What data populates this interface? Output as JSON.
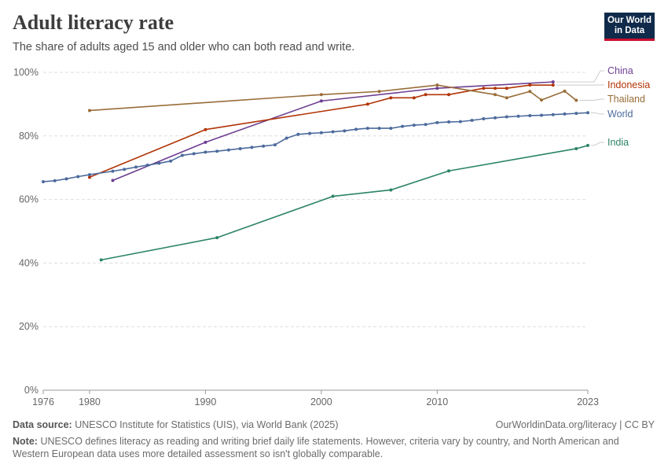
{
  "header": {
    "title": "Adult literacy rate",
    "subtitle": "The share of adults aged 15 and older who can both read and write."
  },
  "logo": {
    "line1": "Our World",
    "line2": "in Data"
  },
  "footer": {
    "source_label": "Data source:",
    "source_text": "UNESCO Institute for Statistics (UIS), via World Bank (2025)",
    "license": "OurWorldinData.org/literacy | CC BY",
    "note_label": "Note:",
    "note_text": "UNESCO defines literacy as reading and writing brief daily life statements. However, criteria vary by country, and North American and Western European data uses more detailed assessment so isn't globally comparable."
  },
  "chart_data": {
    "type": "line",
    "title": "Adult literacy rate",
    "subtitle": "The share of adults aged 15 and older who can both read and write.",
    "xlabel": "",
    "ylabel": "",
    "xlim": [
      1976,
      2023
    ],
    "ylim": [
      0,
      100
    ],
    "x_ticks": [
      1976,
      1980,
      1990,
      2000,
      2010,
      2023
    ],
    "y_ticks": [
      0,
      20,
      40,
      60,
      80,
      100
    ],
    "y_tick_labels": [
      "0%",
      "20%",
      "40%",
      "60%",
      "80%",
      "100%"
    ],
    "grid": "horizontal dashed",
    "legend": "right, inline labels",
    "series": [
      {
        "name": "China",
        "color": "#6d3e91",
        "x": [
          1982,
          1990,
          2000,
          2010,
          2020
        ],
        "y": [
          66,
          78,
          91,
          95,
          97
        ]
      },
      {
        "name": "Indonesia",
        "color": "#b13507",
        "x": [
          1980,
          1990,
          2004,
          2006,
          2008,
          2009,
          2011,
          2014,
          2015,
          2016,
          2018,
          2020
        ],
        "y": [
          67,
          82,
          90,
          92,
          92,
          93,
          93,
          95,
          95,
          95,
          96,
          96
        ]
      },
      {
        "name": "Thailand",
        "color": "#996d39",
        "x": [
          1980,
          2000,
          2005,
          2010,
          2015,
          2016,
          2018,
          2019,
          2021,
          2022
        ],
        "y": [
          88,
          93,
          94,
          96,
          93,
          92,
          94,
          91.3,
          94.1,
          91.2
        ]
      },
      {
        "name": "World",
        "color": "#4c6a9c",
        "x": [
          1976,
          1977,
          1978,
          1979,
          1980,
          1982,
          1983,
          1984,
          1985,
          1986,
          1987,
          1988,
          1989,
          1990,
          1991,
          1992,
          1993,
          1994,
          1995,
          1996,
          1997,
          1998,
          1999,
          2000,
          2001,
          2002,
          2003,
          2004,
          2005,
          2006,
          2007,
          2008,
          2009,
          2010,
          2011,
          2012,
          2013,
          2014,
          2015,
          2016,
          2017,
          2018,
          2019,
          2020,
          2021,
          2022,
          2023
        ],
        "y": [
          65.6,
          65.9,
          66.5,
          67.2,
          67.8,
          68.9,
          69.5,
          70.2,
          70.8,
          71.4,
          72.1,
          73.9,
          74.4,
          74.9,
          75.2,
          75.6,
          76.0,
          76.4,
          76.8,
          77.2,
          79.3,
          80.5,
          80.8,
          81.0,
          81.3,
          81.6,
          82.1,
          82.4,
          82.4,
          82.4,
          83.0,
          83.4,
          83.6,
          84.2,
          84.4,
          84.5,
          84.9,
          85.4,
          85.7,
          86.0,
          86.2,
          86.4,
          86.5,
          86.7,
          86.9,
          87.1,
          87.3
        ]
      },
      {
        "name": "India",
        "color": "#2c8465",
        "x": [
          1981,
          1991,
          2001,
          2006,
          2011,
          2022,
          2023
        ],
        "y": [
          41,
          48,
          61,
          63,
          69,
          76,
          77
        ]
      }
    ]
  }
}
